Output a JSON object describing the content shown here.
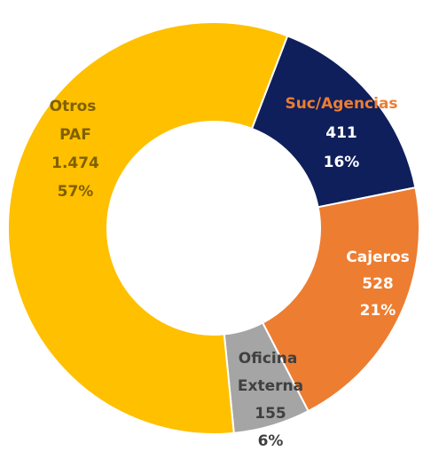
{
  "chart_data": {
    "type": "donut",
    "categories": [
      "Suc/Agencias",
      "Cajeros",
      "Oficina Externa",
      "Otros PAF"
    ],
    "values": [
      411,
      528,
      155,
      1474
    ],
    "value_labels": [
      "411",
      "528",
      "155",
      "1.474"
    ],
    "percent_labels": [
      "16%",
      "21%",
      "6%",
      "57%"
    ],
    "colors": [
      "#0e1f5b",
      "#ed7d31",
      "#a5a5a5",
      "#ffc000"
    ]
  }
}
